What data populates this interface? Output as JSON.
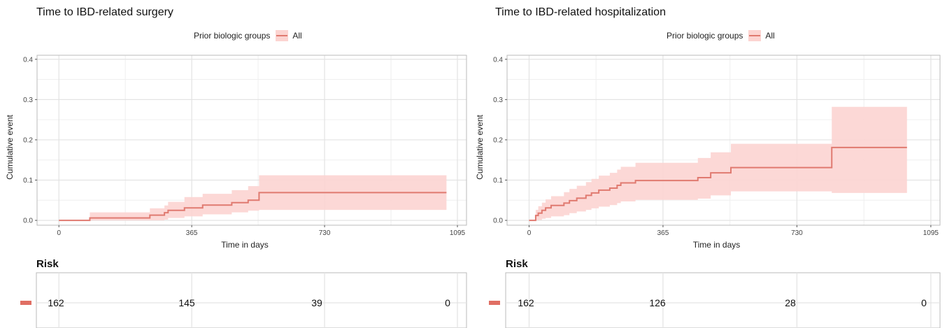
{
  "colors": {
    "line": "#e07a70",
    "band": "#fcd4d1",
    "marker": "#e06f64",
    "grid": "#e3e3e3",
    "panel_border": "#bbbbbb"
  },
  "chart_data": [
    {
      "type": "line",
      "title": "Time to IBD-related surgery",
      "legend": {
        "title": "Prior biologic groups",
        "entries": [
          "All"
        ],
        "position": "top-center"
      },
      "xlabel": "Time in days",
      "ylabel": "Cumulative event",
      "xlim": [
        -60,
        1120
      ],
      "ylim": [
        -0.012,
        0.41
      ],
      "x_ticks": [
        0,
        365,
        730,
        1095
      ],
      "y_ticks": [
        0.0,
        0.1,
        0.2,
        0.3,
        0.4
      ],
      "y_tick_labels": [
        "0.0",
        "0.1",
        "0.2",
        "0.3",
        "0.4"
      ],
      "grid": true,
      "series": [
        {
          "name": "All",
          "step_x": [
            0,
            85,
            250,
            290,
            300,
            345,
            395,
            475,
            520,
            550,
            1065
          ],
          "y": [
            0.0,
            0.006,
            0.013,
            0.019,
            0.025,
            0.031,
            0.038,
            0.044,
            0.05,
            0.069,
            0.069
          ],
          "lower": [
            0.0,
            0.0,
            0.0,
            0.002,
            0.006,
            0.01,
            0.015,
            0.02,
            0.024,
            0.026,
            0.026
          ],
          "upper": [
            0.0,
            0.02,
            0.03,
            0.037,
            0.046,
            0.058,
            0.066,
            0.075,
            0.085,
            0.112,
            0.112
          ]
        }
      ],
      "risk_table": {
        "title": "Risk",
        "times": [
          0,
          365,
          730,
          1095
        ],
        "values": [
          "162",
          "145",
          "39",
          "0"
        ]
      }
    },
    {
      "type": "line",
      "title": "Time to IBD-related hospitalization",
      "legend": {
        "title": "Prior biologic groups",
        "entries": [
          "All"
        ],
        "position": "top-center"
      },
      "xlabel": "Time in days",
      "ylabel": "Cumulative event",
      "xlim": [
        -60,
        1120
      ],
      "ylim": [
        -0.012,
        0.41
      ],
      "x_ticks": [
        0,
        365,
        730,
        1095
      ],
      "y_ticks": [
        0.0,
        0.1,
        0.2,
        0.3,
        0.4
      ],
      "y_tick_labels": [
        "0.0",
        "0.1",
        "0.2",
        "0.3",
        "0.4"
      ],
      "grid": true,
      "series": [
        {
          "name": "All",
          "step_x": [
            0,
            18,
            25,
            35,
            45,
            60,
            95,
            110,
            130,
            155,
            170,
            190,
            220,
            240,
            250,
            290,
            460,
            495,
            550,
            825,
            1030
          ],
          "y": [
            0.0,
            0.012,
            0.018,
            0.025,
            0.031,
            0.037,
            0.043,
            0.049,
            0.055,
            0.062,
            0.068,
            0.075,
            0.08,
            0.087,
            0.093,
            0.099,
            0.106,
            0.118,
            0.131,
            0.181,
            0.181
          ],
          "lower": [
            0.0,
            0.0,
            0.001,
            0.004,
            0.006,
            0.01,
            0.013,
            0.018,
            0.022,
            0.026,
            0.03,
            0.034,
            0.038,
            0.043,
            0.047,
            0.051,
            0.054,
            0.062,
            0.072,
            0.068,
            0.068
          ],
          "upper": [
            0.0,
            0.026,
            0.035,
            0.044,
            0.052,
            0.06,
            0.07,
            0.078,
            0.086,
            0.095,
            0.103,
            0.111,
            0.118,
            0.126,
            0.133,
            0.143,
            0.155,
            0.169,
            0.19,
            0.282,
            0.282
          ]
        }
      ],
      "risk_table": {
        "title": "Risk",
        "times": [
          0,
          365,
          730,
          1095
        ],
        "values": [
          "162",
          "126",
          "28",
          "0"
        ]
      }
    }
  ]
}
